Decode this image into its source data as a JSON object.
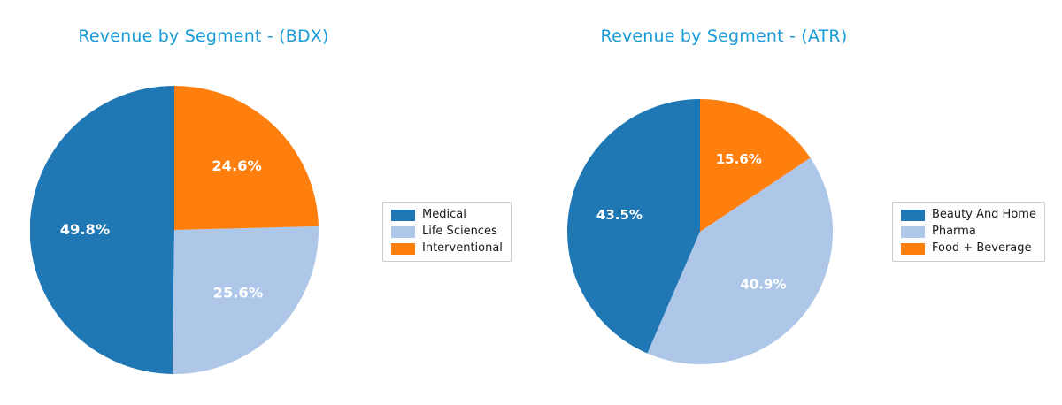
{
  "styles": {
    "title_color": "#189cd9",
    "slice_label_color": "#ffffff",
    "legend_border_color": "#cccccc",
    "background": "#ffffff"
  },
  "chart_data": [
    {
      "type": "pie",
      "title": "Revenue by Segment - (BDX)",
      "labels": [
        "Medical",
        "Life Sciences",
        "Interventional"
      ],
      "values": [
        49.8,
        25.6,
        24.6
      ],
      "value_labels": [
        "49.8%",
        "25.6%",
        "24.6%"
      ],
      "colors": [
        "#1f77b4",
        "#aec7e8",
        "#ff7f0e"
      ],
      "start_angle": 90,
      "direction": "counterclockwise",
      "legend_position": "right"
    },
    {
      "type": "pie",
      "title": "Revenue by Segment - (ATR)",
      "labels": [
        "Beauty And Home",
        "Pharma",
        "Food + Beverage"
      ],
      "values": [
        43.5,
        40.9,
        15.6
      ],
      "value_labels": [
        "43.5%",
        "40.9%",
        "15.6%"
      ],
      "colors": [
        "#1f77b4",
        "#aec7e8",
        "#ff7f0e"
      ],
      "start_angle": 90,
      "direction": "counterclockwise",
      "legend_position": "right"
    }
  ]
}
